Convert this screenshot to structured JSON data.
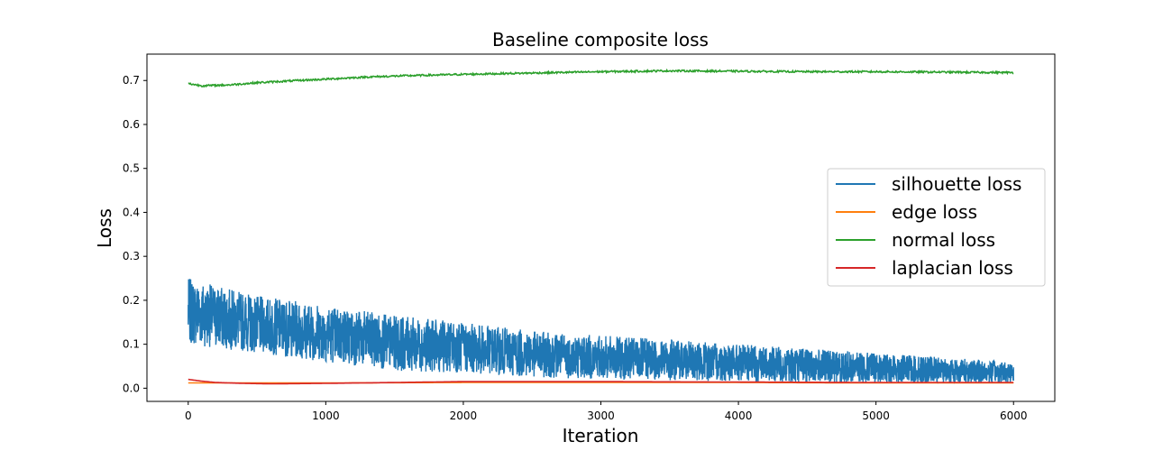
{
  "chart_data": {
    "type": "line",
    "title": "Baseline composite loss",
    "xlabel": "Iteration",
    "ylabel": "Loss",
    "xlim": [
      -300,
      6300
    ],
    "ylim": [
      -0.03,
      0.76
    ],
    "xticks": [
      0,
      1000,
      2000,
      3000,
      4000,
      5000,
      6000
    ],
    "yticks": [
      0.0,
      0.1,
      0.2,
      0.3,
      0.4,
      0.5,
      0.6,
      0.7
    ],
    "grid": false,
    "legend_position": "center-right",
    "series": [
      {
        "name": "silhouette loss",
        "color": "#1f77b4",
        "style": "noisy-band",
        "x": [
          0,
          250,
          500,
          1000,
          1500,
          2000,
          2500,
          3000,
          3500,
          4000,
          4500,
          5000,
          5500,
          6000
        ],
        "upper": [
          0.25,
          0.23,
          0.21,
          0.19,
          0.165,
          0.15,
          0.13,
          0.12,
          0.11,
          0.1,
          0.09,
          0.08,
          0.07,
          0.06
        ],
        "lower": [
          0.1,
          0.09,
          0.08,
          0.06,
          0.04,
          0.035,
          0.025,
          0.02,
          0.018,
          0.015,
          0.013,
          0.012,
          0.012,
          0.012
        ]
      },
      {
        "name": "edge loss",
        "color": "#ff7f0e",
        "x": [
          0,
          1000,
          2000,
          3000,
          4000,
          5000,
          6000
        ],
        "y": [
          0.012,
          0.012,
          0.013,
          0.013,
          0.013,
          0.012,
          0.012
        ]
      },
      {
        "name": "normal loss",
        "color": "#2ca02c",
        "x": [
          0,
          100,
          300,
          500,
          800,
          1000,
          1300,
          1600,
          2000,
          2500,
          3000,
          3500,
          4000,
          4500,
          5000,
          5500,
          6000
        ],
        "y": [
          0.693,
          0.688,
          0.69,
          0.695,
          0.7,
          0.703,
          0.708,
          0.711,
          0.714,
          0.717,
          0.72,
          0.722,
          0.721,
          0.72,
          0.72,
          0.719,
          0.718
        ]
      },
      {
        "name": "laplacian loss",
        "color": "#d62728",
        "x": [
          0,
          100,
          200,
          400,
          600,
          1000,
          1500,
          2000,
          3000,
          4000,
          5000,
          6000
        ],
        "y": [
          0.02,
          0.016,
          0.013,
          0.011,
          0.01,
          0.011,
          0.013,
          0.015,
          0.015,
          0.014,
          0.013,
          0.013
        ]
      }
    ]
  }
}
